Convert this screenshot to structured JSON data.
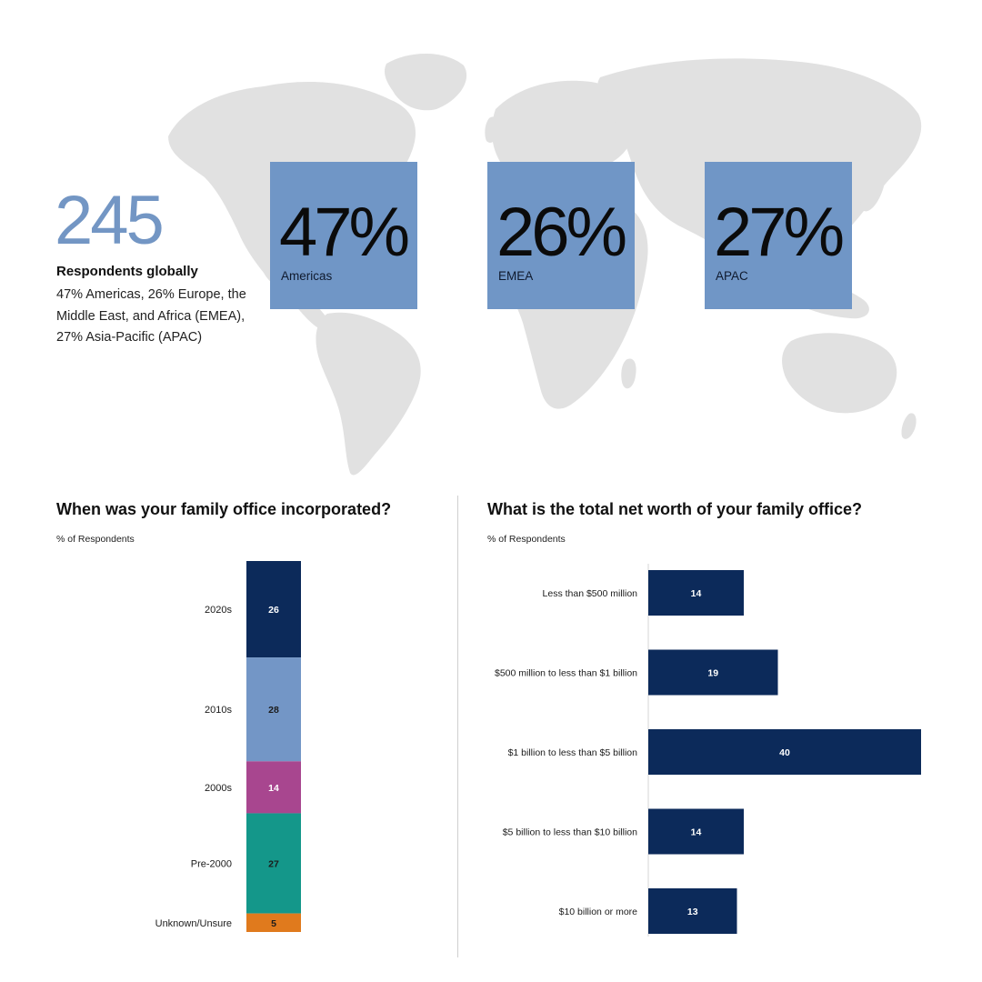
{
  "summary": {
    "total": "245",
    "label": "Respondents globally",
    "description": "47% Americas, 26% Europe, the Middle East, and Africa (EMEA), 27% Asia-Pacific (APAC)"
  },
  "regions": [
    {
      "pct": "47%",
      "name": "Americas"
    },
    {
      "pct": "26%",
      "name": "EMEA"
    },
    {
      "pct": "27%",
      "name": "APAC"
    }
  ],
  "colors": {
    "map": "#e1e1e1",
    "region_box": "#7096c6",
    "big_number": "#7396c4",
    "navy": "#0c2a5a",
    "light_blue": "#7396c6",
    "magenta": "#a8468f",
    "teal": "#14978a",
    "orange": "#e07a1d"
  },
  "chart_data": [
    {
      "type": "bar",
      "stacked": true,
      "orientation": "vertical",
      "title": "When was your family office incorporated?",
      "subtitle": "% of Respondents",
      "categories": [
        "2020s",
        "2010s",
        "2000s",
        "Pre-2000",
        "Unknown/Unsure"
      ],
      "values": [
        26,
        28,
        14,
        27,
        5
      ],
      "colors": [
        "#0c2a5a",
        "#7396c6",
        "#a8468f",
        "#14978a",
        "#e07a1d"
      ],
      "label_colors": [
        "#ffffff",
        "#1b1b1b",
        "#ffffff",
        "#1b1b1b",
        "#1b1b1b"
      ]
    },
    {
      "type": "bar",
      "orientation": "horizontal",
      "title": "What is the total net worth of your family office?",
      "subtitle": "% of Respondents",
      "categories": [
        "Less than $500 million",
        "$500 million to less than $1 billion",
        "$1 billion to less than $5 billion",
        "$5 billion to less than $10 billion",
        "$10 billion or more"
      ],
      "values": [
        14,
        19,
        40,
        14,
        13
      ],
      "xlim": [
        0,
        40
      ],
      "color": "#0c2a5a"
    }
  ]
}
